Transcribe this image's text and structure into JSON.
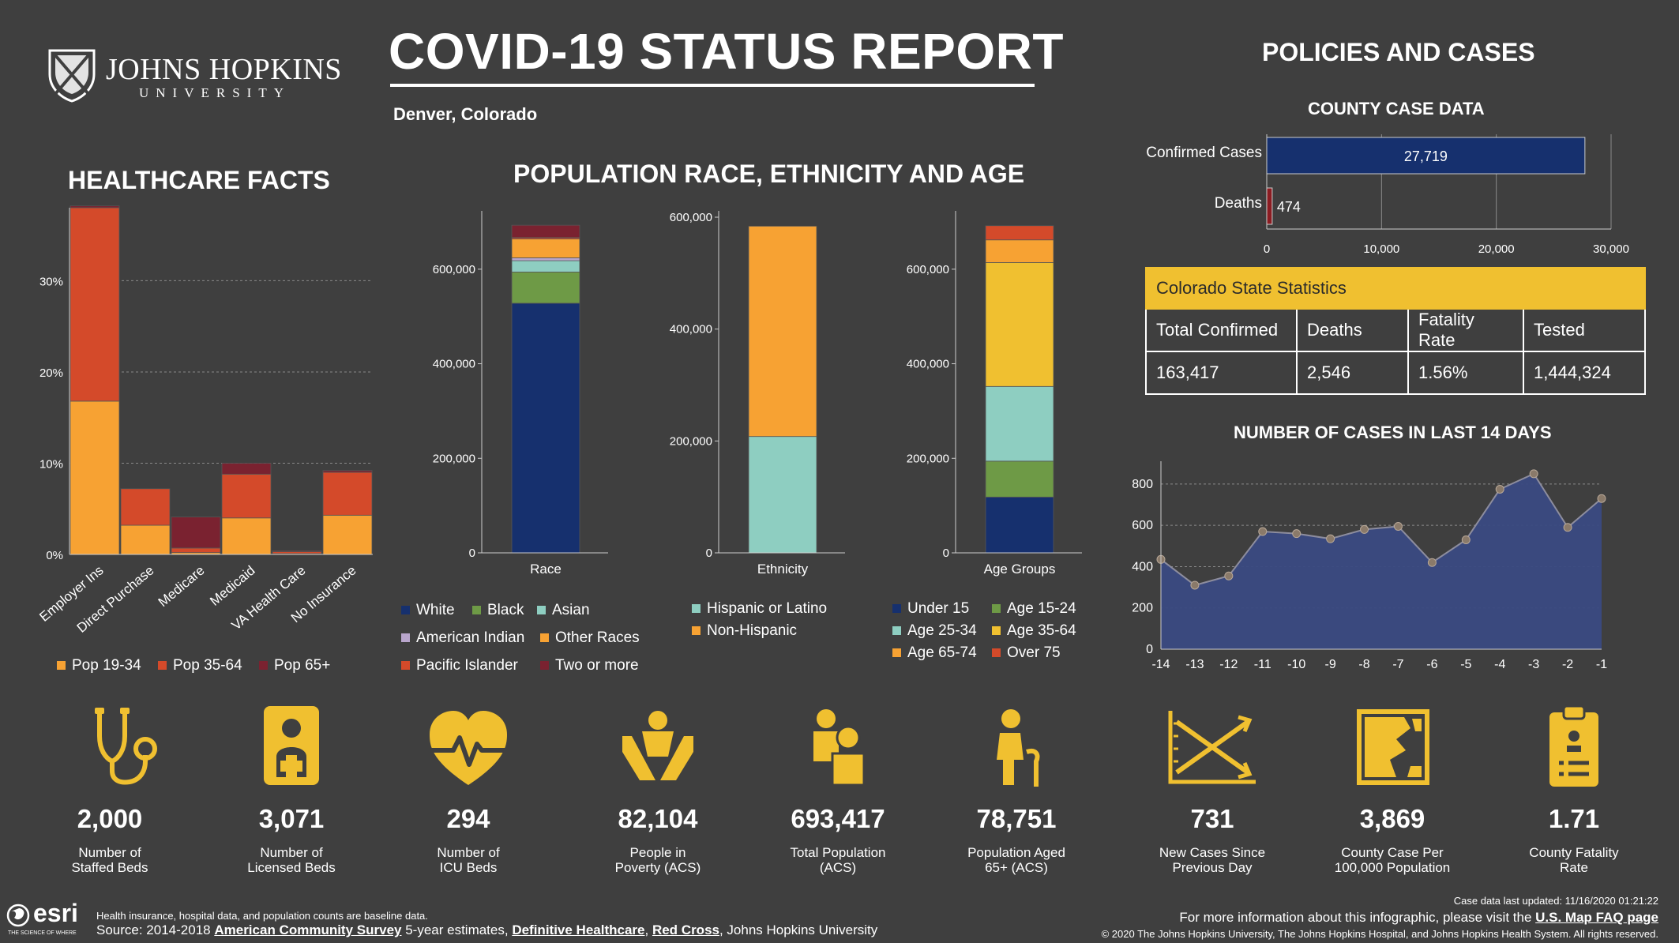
{
  "header": {
    "university_name": "JOHNS HOPKINS",
    "university_sub": "UNIVERSITY",
    "title": "COVID-19 STATUS REPORT",
    "location": "Denver, Colorado"
  },
  "sections": {
    "healthcare": "HEALTHCARE FACTS",
    "population": "POPULATION RACE, ETHNICITY AND AGE",
    "policies": "POLICIES AND CASES",
    "county": "COUNTY CASE DATA",
    "last14": "NUMBER OF CASES IN LAST 14 DAYS"
  },
  "colors": {
    "background": "#3f3f3f",
    "accent_yellow": "#f0c030",
    "navy": "#16306e",
    "deaths_red": "#8b1c22"
  },
  "state_stats": {
    "title": "Colorado State Statistics",
    "headers": [
      "Total Confirmed",
      "Deaths",
      "Fatality Rate",
      "Tested"
    ],
    "values": [
      "163,417",
      "2,546",
      "1.56%",
      "1,444,324"
    ]
  },
  "stats": [
    {
      "value": "2,000",
      "line1": "Number of",
      "line2": "Staffed Beds",
      "icon": "stethoscope-icon"
    },
    {
      "value": "3,071",
      "line1": "Number of",
      "line2": "Licensed Beds",
      "icon": "hospital-bed-icon"
    },
    {
      "value": "294",
      "line1": "Number of",
      "line2": "ICU Beds",
      "icon": "heartbeat-icon"
    },
    {
      "value": "82,104",
      "line1": "People in",
      "line2": "Poverty (ACS)",
      "icon": "hands-people-icon"
    },
    {
      "value": "693,417",
      "line1": "Total Population",
      "line2": "(ACS)",
      "icon": "population-icon"
    },
    {
      "value": "78,751",
      "line1": "Population Aged",
      "line2": "65+ (ACS)",
      "icon": "elderly-icon"
    },
    {
      "value": "731",
      "line1": "New Cases Since",
      "line2": "Previous Day",
      "icon": "trend-chart-icon"
    },
    {
      "value": "3,869",
      "line1": "County Case Per",
      "line2": "100,000 Population",
      "icon": "county-map-icon"
    },
    {
      "value": "1.71",
      "line1": "County Fatality",
      "line2": "Rate",
      "icon": "clipboard-icon"
    }
  ],
  "footer": {
    "esri": "esri",
    "esri_tag": "THE SCIENCE OF WHERE",
    "note": "Health insurance, hospital data, and population counts are baseline data.",
    "source_prefix": "Source: 2014-2018 ",
    "source_link1": "American Community Survey",
    "source_mid": " 5-year estimates, ",
    "source_link2": "Definitive Healthcare",
    "source_sep": ", ",
    "source_link3": "Red Cross",
    "source_suffix": ", Johns Hopkins University",
    "updated": "Case data last updated: 11/16/2020 01:21:22",
    "more_info": "For more information about this infographic, please visit the ",
    "faq_link": "U.S. Map FAQ page",
    "copyright": "© 2020 The Johns Hopkins University, The Johns Hopkins Hospital, and Johns Hopkins Health System. All rights reserved."
  },
  "chart_data": [
    {
      "id": "healthcare",
      "type": "bar",
      "stacked": true,
      "categories": [
        "Employer Ins",
        "Direct Purchase",
        "Medicare",
        "Medicaid",
        "VA Health Care",
        "No Insurance"
      ],
      "series": [
        {
          "name": "Pop 19-34",
          "color": "#f7a233",
          "values": [
            16.8,
            3.2,
            0.2,
            4.0,
            0.1,
            4.3
          ]
        },
        {
          "name": "Pop 35-64",
          "color": "#d44a2a",
          "values": [
            21.2,
            4.0,
            0.5,
            4.8,
            0.2,
            4.7
          ]
        },
        {
          "name": "Pop 65+",
          "color": "#7a2230",
          "values": [
            0.2,
            0.0,
            3.4,
            1.2,
            0.1,
            0.2
          ]
        }
      ],
      "ylim": [
        0,
        38
      ],
      "yticks": [
        0,
        10,
        20,
        30
      ],
      "ytick_labels": [
        "0%",
        "10%",
        "20%",
        "30%"
      ],
      "grid": true
    },
    {
      "id": "race",
      "type": "bar",
      "stacked": true,
      "categories": [
        "Race"
      ],
      "xlabel": "Race",
      "series": [
        {
          "name": "White",
          "color": "#16306e",
          "values": [
            528000
          ]
        },
        {
          "name": "Black",
          "color": "#6e9a46",
          "values": [
            66000
          ]
        },
        {
          "name": "Asian",
          "color": "#8ecec1",
          "values": [
            24000
          ]
        },
        {
          "name": "American Indian",
          "color": "#b9a6cc",
          "values": [
            6000
          ]
        },
        {
          "name": "Other Races",
          "color": "#f7a233",
          "values": [
            40000
          ]
        },
        {
          "name": "Pacific Islander",
          "color": "#d44a2a",
          "values": [
            3000
          ]
        },
        {
          "name": "Two or more",
          "color": "#7a2230",
          "values": [
            26000
          ]
        }
      ],
      "ylim": [
        0,
        710000
      ],
      "yticks": [
        0,
        200000,
        400000,
        600000
      ],
      "ytick_labels": [
        "0",
        "200,000",
        "400,000",
        "600,000"
      ]
    },
    {
      "id": "ethnicity",
      "type": "bar",
      "stacked": true,
      "categories": [
        "Ethnicity"
      ],
      "xlabel": "Ethnicity",
      "series": [
        {
          "name": "Hispanic or Latino",
          "color": "#8ecec1",
          "values": [
            208000
          ]
        },
        {
          "name": "Non-Hispanic",
          "color": "#f7a233",
          "values": [
            376000
          ]
        }
      ],
      "ylim": [
        0,
        600000
      ],
      "yticks": [
        0,
        200000,
        400000,
        600000
      ],
      "ytick_labels": [
        "0",
        "200,000",
        "400,000",
        "600,000"
      ]
    },
    {
      "id": "age",
      "type": "bar",
      "stacked": true,
      "categories": [
        "Age Groups"
      ],
      "xlabel": "Age Groups",
      "series": [
        {
          "name": "Under 15",
          "color": "#16306e",
          "values": [
            118000
          ]
        },
        {
          "name": "Age 15-24",
          "color": "#6e9a46",
          "values": [
            76000
          ]
        },
        {
          "name": "Age 25-34",
          "color": "#8ecec1",
          "values": [
            158000
          ]
        },
        {
          "name": "Age 35-64",
          "color": "#f0c030",
          "values": [
            262000
          ]
        },
        {
          "name": "Age 65-74",
          "color": "#f7a233",
          "values": [
            48000
          ]
        },
        {
          "name": "Over 75",
          "color": "#d44a2a",
          "values": [
            30000
          ]
        }
      ],
      "ylim": [
        0,
        710000
      ],
      "yticks": [
        0,
        200000,
        400000,
        600000
      ],
      "ytick_labels": [
        "0",
        "200,000",
        "400,000",
        "600,000"
      ]
    },
    {
      "id": "county",
      "type": "bar",
      "orientation": "horizontal",
      "categories": [
        "Confirmed Cases",
        "Deaths"
      ],
      "values": [
        27719,
        474
      ],
      "value_labels": [
        "27,719",
        "474"
      ],
      "colors": [
        "#16306e",
        "#8b1c22"
      ],
      "xlim": [
        0,
        30000
      ],
      "xticks": [
        0,
        10000,
        20000,
        30000
      ],
      "xtick_labels": [
        "0",
        "10,000",
        "20,000",
        "30,000"
      ]
    },
    {
      "id": "last14",
      "type": "area",
      "x": [
        -14,
        -13,
        -12,
        -11,
        -10,
        -9,
        -8,
        -7,
        -6,
        -5,
        -4,
        -3,
        -2,
        -1
      ],
      "y": [
        435,
        310,
        355,
        570,
        560,
        535,
        580,
        595,
        420,
        530,
        775,
        850,
        590,
        730
      ],
      "ylim": [
        0,
        880
      ],
      "yticks": [
        0,
        200,
        400,
        600,
        800
      ],
      "xlim": [
        -14,
        -1
      ],
      "color": "#3a4a82",
      "grid": true
    }
  ]
}
